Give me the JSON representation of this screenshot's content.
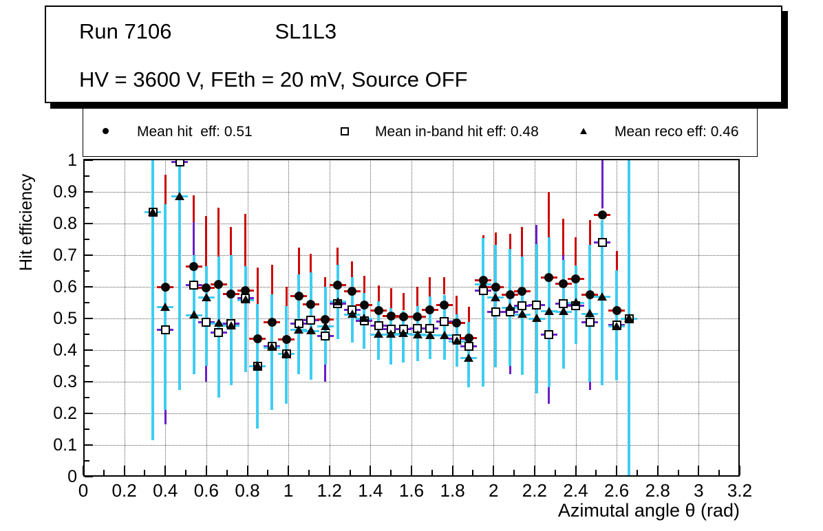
{
  "title_box": {
    "run": "Run 7106",
    "chamber": "SL1L3",
    "conditions": "HV = 3600 V, FEth = 20 mV, Source OFF"
  },
  "legend": {
    "entries": [
      {
        "marker": "filled-circle-icon",
        "label": "Mean hit  eff: 0.51"
      },
      {
        "marker": "open-square-icon",
        "label": "Mean in-band hit eff: 0.48"
      },
      {
        "marker": "filled-triangle-icon",
        "label": "Mean reco eff: 0.46"
      }
    ]
  },
  "axes": {
    "x_title": "Azimutal angle θ (rad)",
    "y_title": "Hit efficiency",
    "x_range": [
      0,
      3.2
    ],
    "y_range": [
      0,
      1
    ],
    "x_ticks": [
      "0",
      "0.2",
      "0.4",
      "0.6",
      "0.8",
      "1",
      "1.2",
      "1.4",
      "1.6",
      "1.8",
      "2",
      "2.2",
      "2.4",
      "2.6",
      "2.8",
      "3",
      "3.2"
    ],
    "y_ticks": [
      "0",
      "0.1",
      "0.2",
      "0.3",
      "0.4",
      "0.5",
      "0.6",
      "0.7",
      "0.8",
      "0.9",
      "1"
    ],
    "grid": "dotted"
  },
  "colors": {
    "hit_error": "#cc0505",
    "inband_error": "#6a1fc8",
    "reco_error": "#3fcdf2",
    "marker": "#0a0a0a",
    "background": "#ffffff"
  },
  "chart_data": {
    "type": "scatter",
    "title": "Run 7106 SL1L3 — HV = 3600 V, FEth = 20 mV, Source OFF",
    "xlabel": "Azimutal angle θ (rad)",
    "ylabel": "Hit efficiency",
    "xlim": [
      0,
      3.2
    ],
    "ylim": [
      0,
      1
    ],
    "x": [
      0.34,
      0.4,
      0.47,
      0.54,
      0.6,
      0.66,
      0.72,
      0.79,
      0.85,
      0.92,
      0.99,
      1.05,
      1.11,
      1.18,
      1.24,
      1.31,
      1.37,
      1.44,
      1.5,
      1.56,
      1.63,
      1.69,
      1.76,
      1.82,
      1.88,
      1.95,
      2.01,
      2.08,
      2.14,
      2.21,
      2.27,
      2.34,
      2.4,
      2.47,
      2.53,
      2.6,
      2.66
    ],
    "series": [
      {
        "name": "Mean hit eff",
        "mean": 0.51,
        "marker": "filled-circle",
        "values": [
          0.835,
          0.6,
          0.995,
          0.665,
          0.596,
          0.607,
          0.577,
          0.588,
          0.435,
          0.488,
          0.434,
          0.57,
          0.545,
          0.497,
          0.605,
          0.585,
          0.543,
          0.525,
          0.507,
          0.505,
          0.506,
          0.528,
          0.542,
          0.486,
          0.439,
          0.62,
          0.6,
          0.575,
          0.585,
          0.542,
          0.63,
          0.61,
          0.626,
          0.576,
          0.828,
          0.524,
          0.5
        ]
      },
      {
        "name": "Mean in-band hit eff",
        "mean": 0.48,
        "marker": "open-square",
        "values": [
          0.835,
          0.465,
          0.995,
          0.605,
          0.488,
          0.455,
          0.484,
          0.565,
          0.35,
          0.413,
          0.387,
          0.484,
          0.495,
          0.445,
          0.547,
          0.527,
          0.493,
          0.478,
          0.466,
          0.467,
          0.468,
          0.468,
          0.49,
          0.435,
          0.411,
          0.589,
          0.521,
          0.52,
          0.54,
          0.542,
          0.448,
          0.547,
          0.54,
          0.487,
          0.74,
          0.48,
          0.5
        ]
      },
      {
        "name": "Mean reco eff",
        "mean": 0.46,
        "marker": "filled-triangle",
        "values": [
          0.835,
          0.535,
          0.885,
          0.51,
          0.566,
          0.484,
          0.477,
          0.558,
          0.35,
          0.408,
          0.387,
          0.464,
          0.46,
          0.475,
          0.553,
          0.512,
          0.499,
          0.45,
          0.449,
          0.452,
          0.448,
          0.446,
          0.446,
          0.428,
          0.374,
          0.607,
          0.566,
          0.534,
          0.512,
          0.5,
          0.522,
          0.521,
          0.55,
          0.515,
          0.568,
          0.474,
          0.5
        ]
      }
    ],
    "error_bars": [
      {
        "red": null,
        "cyan": [
          0.115,
          1.0
        ],
        "purple": null
      },
      {
        "red": [
          0.86,
          0.955
        ],
        "cyan": [
          0.21,
          0.86
        ],
        "purple": [
          0.165,
          0.21
        ]
      },
      {
        "red": null,
        "cyan": [
          0.275,
          1.0
        ],
        "purple": null
      },
      {
        "red": [
          0.805,
          0.89
        ],
        "cyan": [
          0.325,
          0.7
        ],
        "purple": [
          0.7,
          0.805
        ]
      },
      {
        "red": [
          0.665,
          0.825
        ],
        "cyan": [
          0.35,
          0.665
        ],
        "purple": [
          0.3,
          0.35
        ]
      },
      {
        "red": [
          0.695,
          0.85
        ],
        "cyan": [
          0.25,
          0.695
        ],
        "purple": null
      },
      {
        "red": [
          0.7,
          0.79
        ],
        "cyan": [
          0.29,
          0.7
        ],
        "purple": null
      },
      {
        "red": [
          0.665,
          0.83
        ],
        "cyan": [
          0.33,
          0.665
        ],
        "purple": null
      },
      {
        "red": [
          0.545,
          0.66
        ],
        "cyan": [
          0.153,
          0.545
        ],
        "purple": null
      },
      {
        "red": [
          0.577,
          0.67
        ],
        "cyan": [
          0.21,
          0.577
        ],
        "purple": null
      },
      {
        "red": [
          0.54,
          0.6
        ],
        "cyan": [
          0.23,
          0.54
        ],
        "purple": null
      },
      {
        "red": [
          0.64,
          0.725
        ],
        "cyan": [
          0.324,
          0.64
        ],
        "purple": null
      },
      {
        "red": [
          0.645,
          0.705
        ],
        "cyan": [
          0.307,
          0.645
        ],
        "purple": null
      },
      {
        "red": [
          0.6,
          0.63
        ],
        "cyan": [
          0.355,
          0.6
        ],
        "purple": [
          0.3,
          0.355
        ]
      },
      {
        "red": [
          0.67,
          0.725
        ],
        "cyan": [
          0.435,
          0.67
        ],
        "purple": null
      },
      {
        "red": [
          0.63,
          0.68
        ],
        "cyan": [
          0.423,
          0.63
        ],
        "purple": null
      },
      {
        "red": [
          0.58,
          0.635
        ],
        "cyan": [
          0.405,
          0.58
        ],
        "purple": null
      },
      {
        "red": [
          0.555,
          0.605
        ],
        "cyan": [
          0.37,
          0.555
        ],
        "purple": null
      },
      {
        "red": [
          0.533,
          0.596
        ],
        "cyan": [
          0.354,
          0.533
        ],
        "purple": null
      },
      {
        "red": [
          0.525,
          0.58
        ],
        "cyan": [
          0.36,
          0.525
        ],
        "purple": null
      },
      {
        "red": [
          0.54,
          0.6
        ],
        "cyan": [
          0.365,
          0.54
        ],
        "purple": null
      },
      {
        "red": [
          0.57,
          0.63
        ],
        "cyan": [
          0.371,
          0.57
        ],
        "purple": null
      },
      {
        "red": [
          0.575,
          0.63
        ],
        "cyan": [
          0.37,
          0.575
        ],
        "purple": null
      },
      {
        "red": [
          0.512,
          0.572
        ],
        "cyan": [
          0.348,
          0.512
        ],
        "purple": null
      },
      {
        "red": [
          0.49,
          0.538
        ],
        "cyan": [
          0.283,
          0.49
        ],
        "purple": null
      },
      {
        "red": [
          0.755,
          0.762
        ],
        "cyan": [
          0.285,
          0.755
        ],
        "purple": null
      },
      {
        "red": [
          0.733,
          0.772
        ],
        "cyan": [
          0.345,
          0.733
        ],
        "purple": null
      },
      {
        "red": [
          0.72,
          0.768
        ],
        "cyan": [
          0.35,
          0.72
        ],
        "purple": [
          0.325,
          0.35
        ]
      },
      {
        "red": [
          0.695,
          0.79
        ],
        "cyan": [
          0.322,
          0.695
        ],
        "purple": null
      },
      {
        "red": null,
        "cyan": [
          0.262,
          0.735
        ],
        "purple": [
          0.735,
          0.796
        ]
      },
      {
        "red": [
          0.757,
          0.9
        ],
        "cyan": [
          0.283,
          0.757
        ],
        "purple": [
          0.23,
          0.283
        ]
      },
      {
        "red": [
          0.7,
          0.815
        ],
        "cyan": [
          0.342,
          0.685
        ],
        "purple": [
          0.685,
          0.7
        ]
      },
      {
        "red": [
          0.668,
          0.757
        ],
        "cyan": [
          0.42,
          0.668
        ],
        "purple": null
      },
      {
        "red": [
          0.733,
          0.81
        ],
        "cyan": [
          0.3,
          0.733
        ],
        "purple": [
          0.274,
          0.3
        ]
      },
      {
        "red": null,
        "cyan": [
          0.29,
          0.81
        ],
        "purple": [
          0.848,
          1.0
        ]
      },
      {
        "red": [
          0.652,
          0.713
        ],
        "cyan": [
          0.304,
          0.652
        ],
        "purple": null
      },
      {
        "red": null,
        "cyan": [
          0.005,
          1.0
        ],
        "purple": null
      }
    ]
  }
}
